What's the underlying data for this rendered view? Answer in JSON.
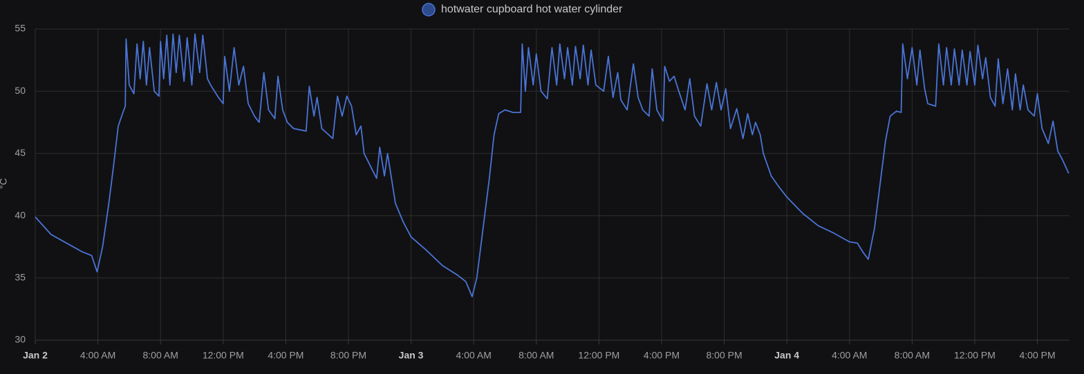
{
  "chart_data": {
    "type": "line",
    "y_label": "°C",
    "xlim": [
      0,
      66.05
    ],
    "ylim": [
      30,
      55
    ],
    "yticks": [
      30,
      35,
      40,
      45,
      50,
      55
    ],
    "xticks": [
      {
        "value": 0,
        "label": "Jan 2"
      },
      {
        "value": 4,
        "label": "4:00 AM"
      },
      {
        "value": 8,
        "label": "8:00 AM"
      },
      {
        "value": 12,
        "label": "12:00 PM"
      },
      {
        "value": 16,
        "label": "4:00 PM"
      },
      {
        "value": 20,
        "label": "8:00 PM"
      },
      {
        "value": 24,
        "label": "Jan 3"
      },
      {
        "value": 28,
        "label": "4:00 AM"
      },
      {
        "value": 32,
        "label": "8:00 AM"
      },
      {
        "value": 36,
        "label": "12:00 PM"
      },
      {
        "value": 40,
        "label": "4:00 PM"
      },
      {
        "value": 44,
        "label": "8:00 PM"
      },
      {
        "value": 48,
        "label": "Jan 4"
      },
      {
        "value": 52,
        "label": "4:00 AM"
      },
      {
        "value": 56,
        "label": "8:00 AM"
      },
      {
        "value": 60,
        "label": "12:00 PM"
      },
      {
        "value": 64,
        "label": "4:00 PM"
      }
    ],
    "grid": true,
    "x": [
      0,
      1,
      2,
      3,
      3.6,
      3.95,
      4.3,
      4.7,
      5,
      5.3,
      5.6,
      5.75,
      5.8,
      6,
      6.3,
      6.5,
      6.7,
      6.9,
      7.1,
      7.3,
      7.6,
      7.9,
      8,
      8.2,
      8.4,
      8.6,
      8.8,
      9,
      9.2,
      9.5,
      9.7,
      10,
      10.2,
      10.5,
      10.7,
      11,
      11.2,
      11.7,
      12,
      12.1,
      12.4,
      12.7,
      13,
      13.3,
      13.6,
      14,
      14.3,
      14.6,
      14.9,
      15.3,
      15.5,
      15.8,
      16.1,
      16.5,
      17.3,
      17.5,
      17.8,
      18,
      18.3,
      19,
      19.3,
      19.6,
      19.9,
      20.2,
      20.5,
      20.8,
      21,
      21.4,
      21.8,
      22,
      22.3,
      22.5,
      23,
      23.5,
      24,
      25,
      26,
      27,
      27.5,
      27.9,
      28.2,
      28.6,
      29,
      29.3,
      29.6,
      30,
      30.5,
      31,
      31.1,
      31.3,
      31.5,
      31.8,
      32,
      32.3,
      32.7,
      33,
      33.3,
      33.5,
      33.8,
      34,
      34.3,
      34.5,
      34.8,
      35,
      35.3,
      35.5,
      35.8,
      36.3,
      36.6,
      36.9,
      37.2,
      37.4,
      37.8,
      38.2,
      38.5,
      38.8,
      39.2,
      39.4,
      39.7,
      40.1,
      40.2,
      40.5,
      40.8,
      41.1,
      41.5,
      41.8,
      42.1,
      42.5,
      42.9,
      43.2,
      43.5,
      43.8,
      44.1,
      44.4,
      44.8,
      45.2,
      45.5,
      45.8,
      46,
      46.3,
      46.5,
      47,
      47.5,
      48,
      49,
      50,
      51,
      52,
      52.5,
      52.9,
      53.2,
      53.6,
      54,
      54.3,
      54.6,
      55,
      55.3,
      55.4,
      55.7,
      56,
      56.3,
      56.5,
      56.8,
      57,
      57.5,
      57.7,
      58,
      58.2,
      58.5,
      58.7,
      59,
      59.2,
      59.5,
      59.7,
      60,
      60.2,
      60.5,
      60.7,
      61,
      61.3,
      61.5,
      61.8,
      62.1,
      62.4,
      62.6,
      62.9,
      63.1,
      63.4,
      63.8,
      64,
      64.3,
      64.7,
      65,
      65.3,
      65.6,
      66
    ],
    "series": [
      {
        "name": "hotwater cupboard hot water cylinder",
        "color": "#4a74d6",
        "values": [
          39.9,
          38.5,
          37.8,
          37.1,
          36.8,
          35.5,
          37.5,
          41,
          44,
          47.2,
          48.3,
          48.8,
          54.2,
          50.5,
          49.8,
          53.8,
          51,
          54,
          50.5,
          53.5,
          50,
          49.6,
          54,
          51,
          54.5,
          50.5,
          54.6,
          51.5,
          54.5,
          50.8,
          54.3,
          50.5,
          54.6,
          51.5,
          54.5,
          51,
          50.5,
          49.5,
          49,
          52.8,
          50,
          53.5,
          50.5,
          52,
          49,
          48,
          47.5,
          51.5,
          48.5,
          47.8,
          51.2,
          48.5,
          47.5,
          47,
          46.8,
          50.4,
          48,
          49.5,
          47,
          46.2,
          49.6,
          48,
          49.6,
          48.8,
          46.5,
          47.2,
          45,
          44,
          43,
          45.5,
          43.2,
          45,
          41,
          39.5,
          38.3,
          37.2,
          36,
          35.2,
          34.7,
          33.5,
          35,
          39,
          43,
          46.5,
          48.2,
          48.5,
          48.3,
          48.3,
          53.8,
          50,
          53.5,
          50.5,
          53,
          50,
          49.4,
          53.5,
          50.5,
          53.8,
          51,
          53.5,
          50.5,
          53.6,
          51,
          53.7,
          50.5,
          53.3,
          50.5,
          50,
          52.8,
          49.5,
          51.5,
          49.3,
          48.5,
          52.2,
          49.5,
          48.5,
          48,
          51.8,
          48.5,
          47.6,
          52,
          50.8,
          51.2,
          50,
          48.5,
          51,
          48,
          47.2,
          50.6,
          48.5,
          50.7,
          48.5,
          50.2,
          47,
          48.6,
          46.2,
          48.2,
          46.5,
          47.5,
          46.5,
          45,
          43.2,
          42.3,
          41.5,
          40.2,
          39.2,
          38.6,
          37.9,
          37.8,
          37,
          36.5,
          39,
          43,
          46,
          48,
          48.4,
          48.3,
          53.8,
          51,
          53.5,
          50.5,
          53.3,
          50.2,
          49,
          48.8,
          53.8,
          50.5,
          53.5,
          50.5,
          53.4,
          50.5,
          53.3,
          50.5,
          53.2,
          50.5,
          53.7,
          51,
          52.7,
          49.5,
          48.8,
          52.6,
          49,
          51.8,
          48.5,
          51.4,
          48.5,
          50.5,
          48.5,
          48,
          49.8,
          47,
          45.8,
          47.6,
          45.2,
          44.5,
          43.4
        ]
      }
    ]
  }
}
